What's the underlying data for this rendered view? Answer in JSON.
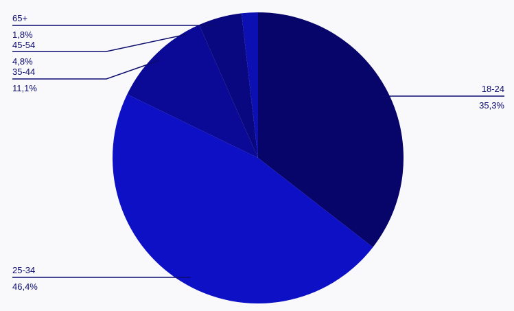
{
  "chart_data": {
    "type": "pie",
    "slices": [
      {
        "label": "18-24",
        "value": 35.3,
        "text": "35,3%",
        "color": "#07056a"
      },
      {
        "label": "25-34",
        "value": 46.4,
        "text": "46,4%",
        "color": "#0e10c6"
      },
      {
        "label": "35-44",
        "value": 11.1,
        "text": "11,1%",
        "color": "#0a0a96"
      },
      {
        "label": "45-54",
        "value": 4.8,
        "text": "4,8%",
        "color": "#090880"
      },
      {
        "label": "65+",
        "value": 1.8,
        "text": "1,8%",
        "color": "#0c0fb2"
      }
    ],
    "start_angle_deg": 0,
    "direction": "clockwise",
    "legend": "none",
    "label_color": "#0b0b6e"
  }
}
